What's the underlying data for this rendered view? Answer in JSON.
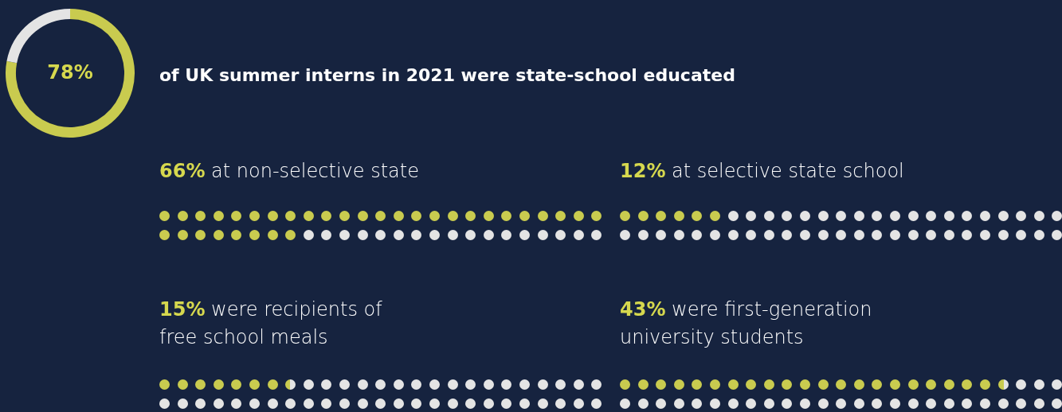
{
  "chart_data": [
    {
      "type": "donut",
      "title": "of UK summer interns in 2021 were state-school educated",
      "categories": [
        null,
        null
      ],
      "values": [
        78,
        22
      ],
      "value_labels": [
        "78%",
        null
      ],
      "colors": [
        "#c9cb4f",
        "#e4e4e4"
      ]
    },
    {
      "type": "other",
      "title": "at non-selective state",
      "values": [
        66
      ],
      "value_labels": [
        "66%"
      ],
      "color": "#c9cb4f"
    },
    {
      "type": "other",
      "title": "at selective state school",
      "values": [
        12
      ],
      "value_labels": [
        "12%"
      ],
      "color": "#c9cb4f"
    },
    {
      "type": "other",
      "title": "were recipients of\nfree school meals",
      "values": [
        15
      ],
      "value_labels": [
        "15%"
      ],
      "color": "#c9cb4f"
    },
    {
      "type": "other",
      "title": "were first-generation\nuniversity students",
      "values": [
        43
      ],
      "value_labels": [
        "43%"
      ],
      "color": "#c9cb4f"
    }
  ]
}
